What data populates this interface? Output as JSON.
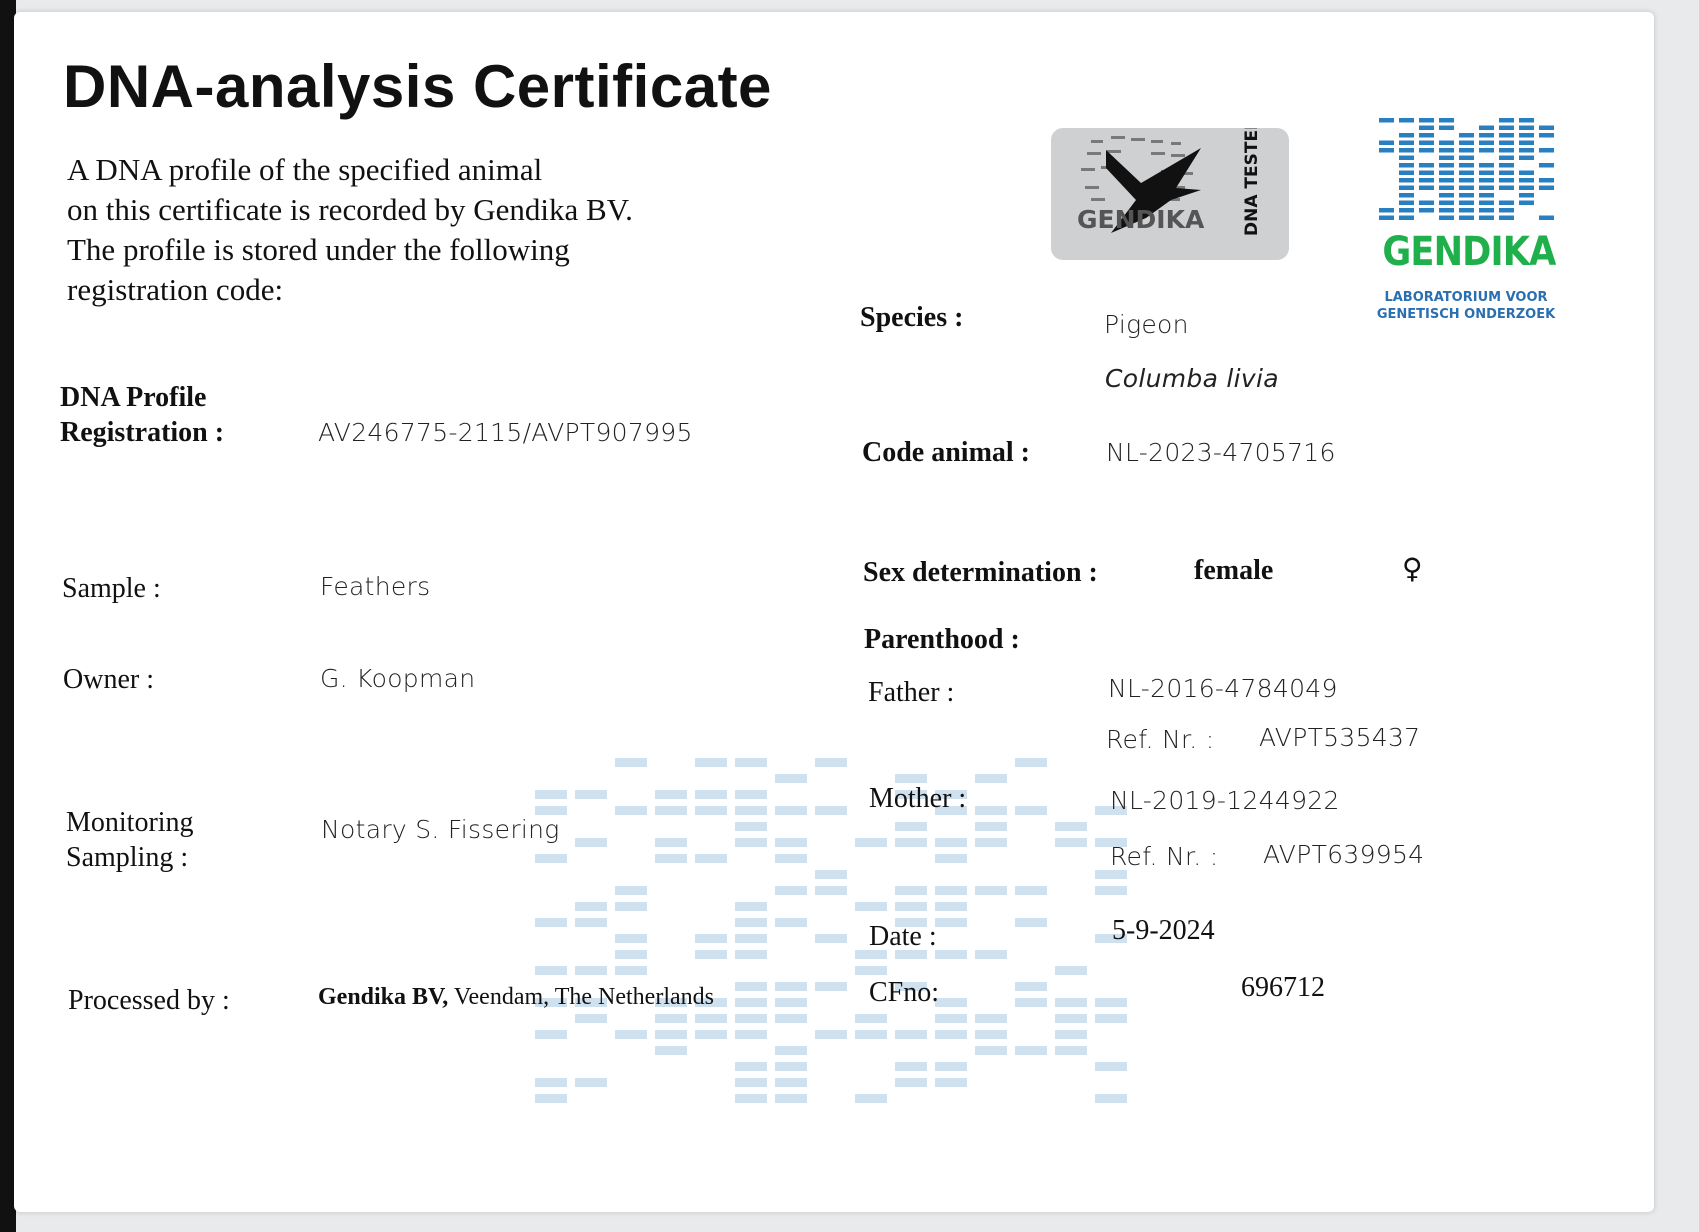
{
  "title": "DNA-analysis Certificate",
  "intro": [
    "A DNA profile of the specified animal",
    "on this certificate is recorded by Gendika BV.",
    "The profile is stored under the following",
    "registration code:"
  ],
  "badge": {
    "brand": "GENDIKA",
    "text": "DNA TESTED",
    "icon": "pigeon-silhouette-icon"
  },
  "logo": {
    "brand": "GENDIKA",
    "tagline1": "LABORATORIUM VOOR",
    "tagline2": "GENETISCH ONDERZOEK",
    "color_green": "#1fb04b",
    "color_blue": "#2a7fc1"
  },
  "left": {
    "registration_label1": "DNA Profile",
    "registration_label2": "Registration :",
    "registration_value": "AV246775-2115/AVPT907995",
    "sample_label": "Sample :",
    "sample_value": "Feathers",
    "owner_label": "Owner :",
    "owner_value": "G. Koopman",
    "monitoring_label1": "Monitoring",
    "monitoring_label2": "Sampling :",
    "monitoring_value": "Notary S. Fissering",
    "processed_label": "Processed by :",
    "processed_company": "Gendika BV,",
    "processed_location": " Veendam, The Netherlands"
  },
  "right": {
    "species_label": "Species :",
    "species_common": "Pigeon",
    "species_latin": "Columba livia",
    "code_label": "Code animal :",
    "code_value": "NL-2023-4705716",
    "sex_label": "Sex determination :",
    "sex_value": "female",
    "sex_symbol": "♀",
    "parenthood_label": "Parenthood :",
    "father_label": "Father :",
    "father_value": "NL-2016-4784049",
    "father_ref_label": "Ref. Nr. :",
    "father_ref": "AVPT535437",
    "mother_label": "Mother :",
    "mother_value": "NL-2019-1244922",
    "mother_ref_label": "Ref. Nr. :",
    "mother_ref": "AVPT639954",
    "date_label": "Date :",
    "date_value": "5-9-2024",
    "cfno_label": "CFno:",
    "cfno_value": "696712"
  }
}
